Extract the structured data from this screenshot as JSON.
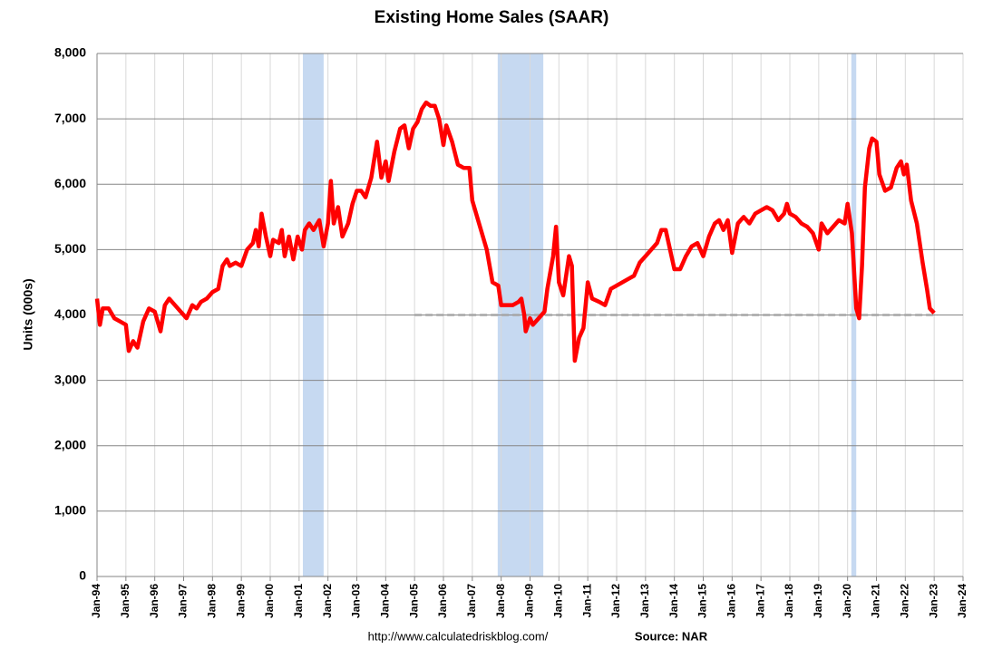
{
  "chart_data": {
    "type": "line",
    "title": "Existing Home Sales (SAAR)",
    "y_label": "Units (000s)",
    "footer_url": "http://www.calculatedriskblog.com/",
    "footer_source": "Source: NAR",
    "xlim": [
      1994,
      2024
    ],
    "xticks": [
      {
        "value": 1994,
        "label": "Jan-94"
      },
      {
        "value": 1995,
        "label": "Jan-95"
      },
      {
        "value": 1996,
        "label": "Jan-96"
      },
      {
        "value": 1997,
        "label": "Jan-97"
      },
      {
        "value": 1998,
        "label": "Jan-98"
      },
      {
        "value": 1999,
        "label": "Jan-99"
      },
      {
        "value": 2000,
        "label": "Jan-00"
      },
      {
        "value": 2001,
        "label": "Jan-01"
      },
      {
        "value": 2002,
        "label": "Jan-02"
      },
      {
        "value": 2003,
        "label": "Jan-03"
      },
      {
        "value": 2004,
        "label": "Jan-04"
      },
      {
        "value": 2005,
        "label": "Jan-05"
      },
      {
        "value": 2006,
        "label": "Jan-06"
      },
      {
        "value": 2007,
        "label": "Jan-07"
      },
      {
        "value": 2008,
        "label": "Jan-08"
      },
      {
        "value": 2009,
        "label": "Jan-09"
      },
      {
        "value": 2010,
        "label": "Jan-10"
      },
      {
        "value": 2011,
        "label": "Jan-11"
      },
      {
        "value": 2012,
        "label": "Jan-12"
      },
      {
        "value": 2013,
        "label": "Jan-13"
      },
      {
        "value": 2014,
        "label": "Jan-14"
      },
      {
        "value": 2015,
        "label": "Jan-15"
      },
      {
        "value": 2016,
        "label": "Jan-16"
      },
      {
        "value": 2017,
        "label": "Jan-17"
      },
      {
        "value": 2018,
        "label": "Jan-18"
      },
      {
        "value": 2019,
        "label": "Jan-19"
      },
      {
        "value": 2020,
        "label": "Jan-20"
      },
      {
        "value": 2021,
        "label": "Jan-21"
      },
      {
        "value": 2022,
        "label": "Jan-22"
      },
      {
        "value": 2023,
        "label": "Jan-23"
      },
      {
        "value": 2024,
        "label": "Jan-24"
      }
    ],
    "ylim": [
      0,
      8000
    ],
    "yticks": [
      0,
      {
        "value": 1000,
        "label": "1,000"
      },
      {
        "value": 2000,
        "label": "2,000"
      },
      {
        "value": 3000,
        "label": "3,000"
      },
      {
        "value": 4000,
        "label": "4,000"
      },
      {
        "value": 5000,
        "label": "5,000"
      },
      {
        "value": 6000,
        "label": "6,000"
      },
      {
        "value": 7000,
        "label": "7,000"
      },
      {
        "value": 8000,
        "label": "8,000"
      }
    ],
    "grid": true,
    "recession_color": "#c6d9f1",
    "recessions": [
      {
        "start": 2001.13,
        "end": 2001.85
      },
      {
        "start": 2007.88,
        "end": 2009.46
      },
      {
        "start": 2020.13,
        "end": 2020.3
      }
    ],
    "reference_line": {
      "y": 4000,
      "x_start": 2005,
      "x_end": 2023.1,
      "color": "#a6a6a6"
    },
    "series": [
      {
        "name": "Existing Home Sales",
        "color": "#ff0000",
        "x": [
          1994.0,
          1994.1,
          1994.2,
          1994.4,
          1994.6,
          1994.8,
          1995.0,
          1995.1,
          1995.25,
          1995.4,
          1995.6,
          1995.8,
          1996.0,
          1996.2,
          1996.35,
          1996.5,
          1996.7,
          1997.0,
          1997.1,
          1997.3,
          1997.45,
          1997.6,
          1997.8,
          1998.0,
          1998.2,
          1998.35,
          1998.5,
          1998.6,
          1998.8,
          1999.0,
          1999.2,
          1999.4,
          1999.5,
          1999.6,
          1999.7,
          1999.85,
          2000.0,
          2000.1,
          2000.3,
          2000.4,
          2000.5,
          2000.65,
          2000.8,
          2000.95,
          2001.1,
          2001.2,
          2001.35,
          2001.5,
          2001.7,
          2001.85,
          2002.0,
          2002.1,
          2002.2,
          2002.35,
          2002.5,
          2002.7,
          2002.85,
          2003.0,
          2003.15,
          2003.3,
          2003.5,
          2003.7,
          2003.85,
          2004.0,
          2004.1,
          2004.3,
          2004.5,
          2004.65,
          2004.8,
          2004.95,
          2005.1,
          2005.25,
          2005.4,
          2005.55,
          2005.7,
          2005.85,
          2006.0,
          2006.1,
          2006.3,
          2006.5,
          2006.7,
          2006.9,
          2007.0,
          2007.1,
          2007.3,
          2007.5,
          2007.7,
          2007.9,
          2008.0,
          2008.2,
          2008.4,
          2008.6,
          2008.7,
          2008.8,
          2008.85,
          2009.0,
          2009.1,
          2009.3,
          2009.5,
          2009.6,
          2009.8,
          2009.9,
          2010.0,
          2010.15,
          2010.35,
          2010.45,
          2010.55,
          2010.7,
          2010.85,
          2011.0,
          2011.15,
          2011.4,
          2011.6,
          2011.8,
          2012.0,
          2012.2,
          2012.4,
          2012.6,
          2012.8,
          2013.0,
          2013.2,
          2013.4,
          2013.55,
          2013.7,
          2013.85,
          2014.0,
          2014.2,
          2014.4,
          2014.6,
          2014.8,
          2015.0,
          2015.2,
          2015.4,
          2015.55,
          2015.7,
          2015.85,
          2016.0,
          2016.2,
          2016.4,
          2016.6,
          2016.8,
          2017.0,
          2017.2,
          2017.4,
          2017.6,
          2017.8,
          2017.9,
          2018.0,
          2018.2,
          2018.4,
          2018.6,
          2018.8,
          2019.0,
          2019.1,
          2019.3,
          2019.5,
          2019.7,
          2019.9,
          2020.0,
          2020.15,
          2020.3,
          2020.4,
          2020.5,
          2020.6,
          2020.75,
          2020.85,
          2021.0,
          2021.1,
          2021.3,
          2021.5,
          2021.7,
          2021.85,
          2021.95,
          2022.05,
          2022.2,
          2022.4,
          2022.6,
          2022.75,
          2022.85,
          2023.0
        ],
        "values": [
          4250,
          3850,
          4100,
          4100,
          3950,
          3900,
          3850,
          3450,
          3600,
          3500,
          3900,
          4100,
          4050,
          3750,
          4150,
          4250,
          4150,
          4000,
          3950,
          4150,
          4100,
          4200,
          4250,
          4350,
          4400,
          4750,
          4850,
          4750,
          4800,
          4750,
          5000,
          5100,
          5300,
          5050,
          5550,
          5200,
          4900,
          5150,
          5100,
          5300,
          4900,
          5200,
          4850,
          5200,
          5000,
          5300,
          5400,
          5300,
          5450,
          5050,
          5400,
          6050,
          5400,
          5650,
          5200,
          5400,
          5700,
          5900,
          5900,
          5800,
          6100,
          6650,
          6100,
          6350,
          6050,
          6500,
          6850,
          6900,
          6550,
          6850,
          6950,
          7150,
          7250,
          7200,
          7200,
          7000,
          6600,
          6900,
          6650,
          6300,
          6250,
          6250,
          5750,
          5600,
          5300,
          5000,
          4500,
          4450,
          4150,
          4150,
          4150,
          4200,
          4250,
          4000,
          3750,
          3950,
          3850,
          3950,
          4050,
          4400,
          4900,
          5350,
          4500,
          4300,
          4900,
          4750,
          3300,
          3650,
          3800,
          4500,
          4250,
          4200,
          4150,
          4400,
          4450,
          4500,
          4550,
          4600,
          4800,
          4900,
          5000,
          5100,
          5300,
          5300,
          5000,
          4700,
          4700,
          4900,
          5050,
          5100,
          4900,
          5200,
          5400,
          5450,
          5300,
          5450,
          4950,
          5400,
          5500,
          5400,
          5550,
          5600,
          5650,
          5600,
          5450,
          5550,
          5700,
          5550,
          5500,
          5400,
          5350,
          5250,
          5000,
          5400,
          5250,
          5350,
          5450,
          5400,
          5700,
          5250,
          4100,
          3950,
          4750,
          5950,
          6550,
          6700,
          6650,
          6150,
          5900,
          5950,
          6250,
          6350,
          6150,
          6300,
          5750,
          5400,
          4800,
          4400,
          4100,
          4030
        ]
      }
    ]
  }
}
